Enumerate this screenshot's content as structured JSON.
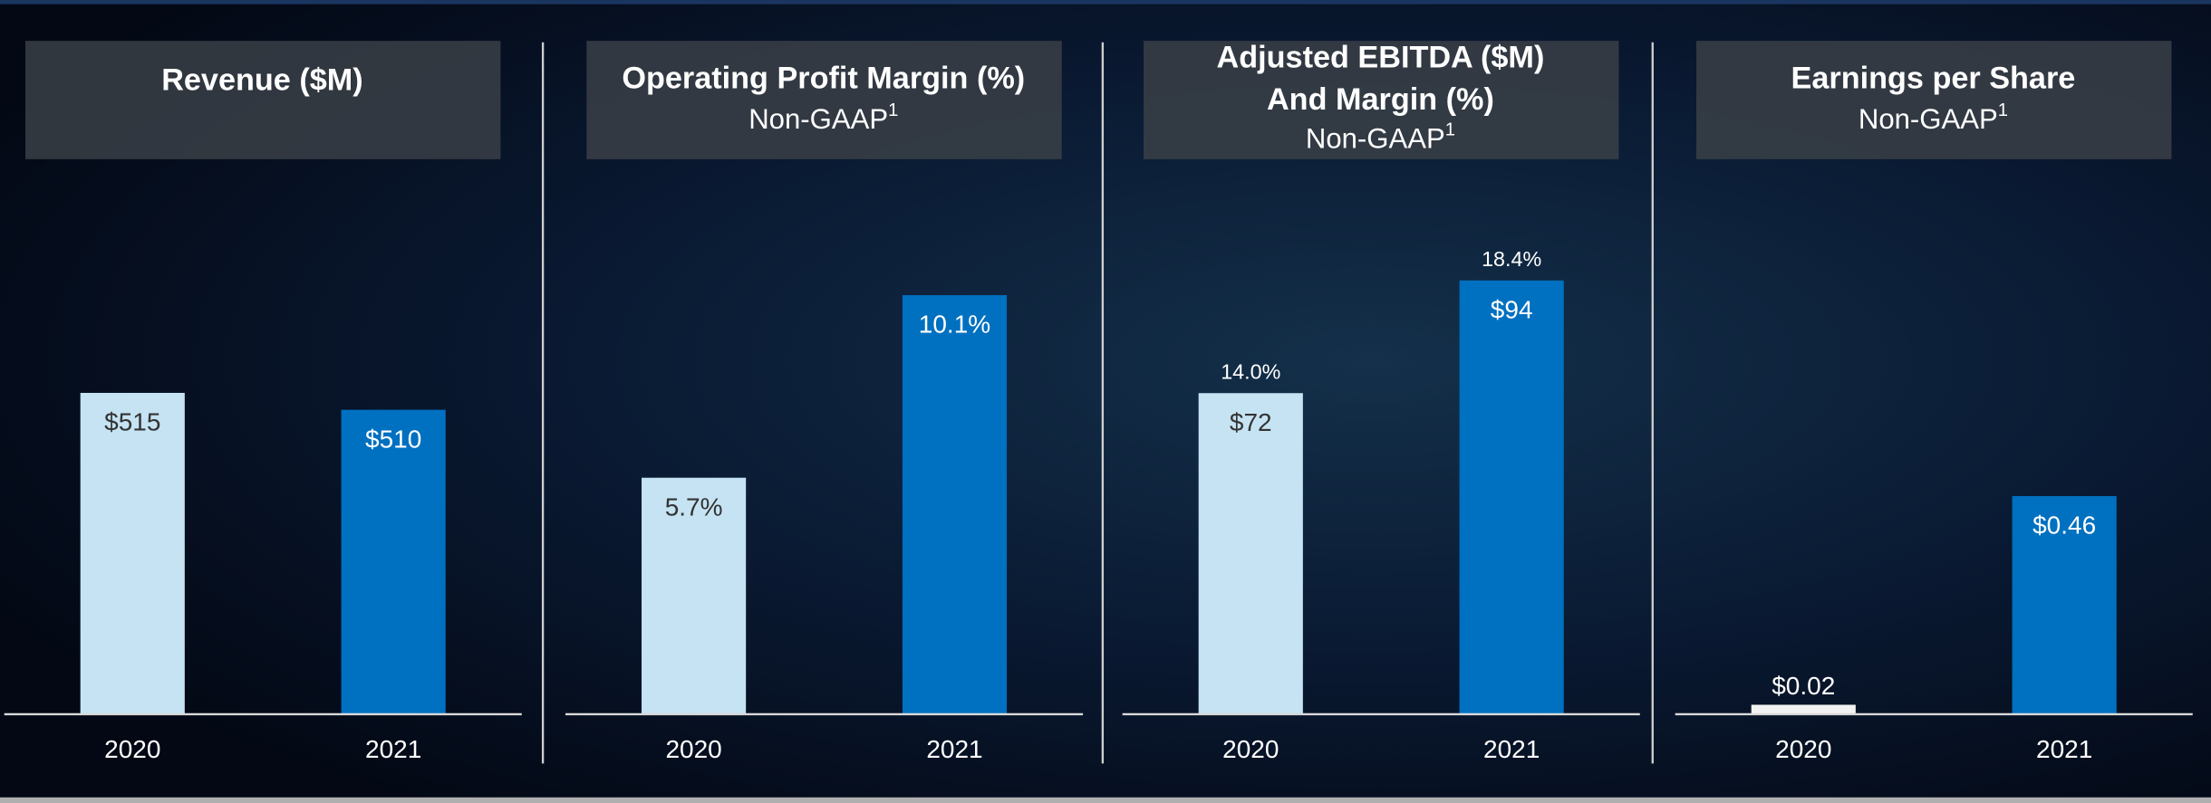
{
  "chart_data": [
    {
      "type": "bar",
      "title": "Revenue ($M)",
      "categories": [
        "2020",
        "2021"
      ],
      "values": [
        515,
        510
      ],
      "value_labels": [
        "$515",
        "$510"
      ],
      "colors": [
        "#c5e3f3",
        "#0070c0"
      ],
      "ylim": [
        420,
        577
      ]
    },
    {
      "type": "bar",
      "title": "Operating Profit Margin (%)",
      "subtitle": "Non-GAAP",
      "subtitle_footnote": "1",
      "categories": [
        "2020",
        "2021"
      ],
      "values": [
        5.7,
        10.1
      ],
      "value_labels": [
        "5.7%",
        "10.1%"
      ],
      "colors": [
        "#c5e3f3",
        "#0070c0"
      ],
      "ylim": [
        0,
        12.8
      ]
    },
    {
      "type": "bar",
      "title": [
        "Adjusted EBITDA ($M)",
        "And Margin (%)"
      ],
      "subtitle": "Non-GAAP",
      "subtitle_footnote": "1",
      "categories": [
        "2020",
        "2021"
      ],
      "values": [
        72,
        94
      ],
      "value_labels": [
        "$72",
        "$94"
      ],
      "margins": [
        14.0,
        18.4
      ],
      "margin_labels": [
        "14.0%",
        "18.4%"
      ],
      "colors": [
        "#c5e3f3",
        "#0070c0"
      ],
      "ylim": [
        9.3,
        113
      ]
    },
    {
      "type": "bar",
      "title": "Earnings per Share",
      "subtitle": "Non-GAAP",
      "subtitle_footnote": "1",
      "categories": [
        "2020",
        "2021"
      ],
      "values": [
        0.02,
        0.46
      ],
      "value_labels": [
        "$0.02",
        "$0.46"
      ],
      "colors": [
        "#f2f2f2",
        "#0070c0"
      ],
      "ylim": [
        0,
        1.12
      ]
    }
  ]
}
